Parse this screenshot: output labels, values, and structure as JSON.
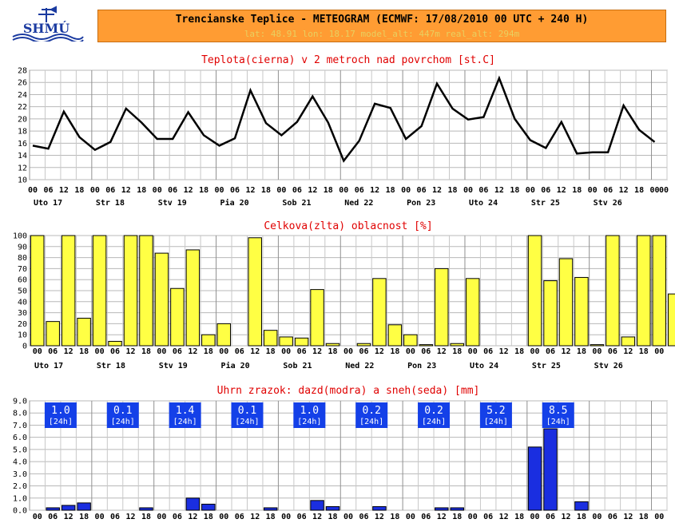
{
  "header": {
    "logo_text": "SHMÚ",
    "title": "Trencianske Teplice - METEOGRAM (ECMWF: 17/08/2010 00 UTC + 240 H)",
    "meta": "lat: 48.91   lon: 18.17   model_alt: 447m   real_alt: 294m"
  },
  "colors": {
    "header_bg": "#ff9c33",
    "title_red": "#e00000",
    "temp_line": "#000000",
    "cloud_bar": "#ffff44",
    "precip_bar": "#1a2ee0",
    "label_box": "#1440e8"
  },
  "hour_labels": [
    "00",
    "06",
    "12",
    "18"
  ],
  "day_labels": [
    "Uto 17",
    "Str 18",
    "Stv 19",
    "Pia 20",
    "Sob 21",
    "Ned 22",
    "Pon 23",
    "Uto 24",
    "Str 25",
    "Stv 26"
  ],
  "chart_data": [
    {
      "type": "line",
      "title": "Teplota(cierna) v 2 metroch nad povrchom [st.C]",
      "y_ticks": [
        "28",
        "26",
        "24",
        "22",
        "20",
        "18",
        "16",
        "14",
        "12",
        "10"
      ],
      "ylim": [
        10,
        28
      ],
      "grid": true,
      "values": [
        15.6,
        15.1,
        21.2,
        17.0,
        14.9,
        16.2,
        21.7,
        19.4,
        16.7,
        16.7,
        21.1,
        17.3,
        15.6,
        16.8,
        24.7,
        19.3,
        17.3,
        19.5,
        23.7,
        19.4,
        13.1,
        16.4,
        22.5,
        21.8,
        16.7,
        18.8,
        25.8,
        21.7,
        19.9,
        20.3,
        26.7,
        20.0,
        16.5,
        15.2,
        19.5,
        14.3,
        14.5,
        14.5,
        22.2,
        18.2,
        16.2
      ]
    },
    {
      "type": "bar",
      "title": "Celkova(zlta) oblacnost [%]",
      "y_ticks": [
        "100",
        "90",
        "80",
        "70",
        "60",
        "50",
        "40",
        "30",
        "20",
        "10",
        "0"
      ],
      "ylim": [
        0,
        100
      ],
      "grid": true,
      "values": [
        100,
        22,
        100,
        25,
        100,
        4,
        100,
        100,
        84,
        52,
        87,
        10,
        20,
        0,
        98,
        14,
        8,
        7,
        51,
        2,
        0,
        2,
        61,
        19,
        10,
        1,
        70,
        2,
        61,
        0,
        0,
        0,
        100,
        59,
        79,
        62,
        1,
        100,
        8,
        100,
        100,
        47
      ]
    },
    {
      "type": "bar",
      "title": "Uhrn zrazok: dazd(modra) a sneh(seda) [mm]",
      "y_ticks": [
        "9.0",
        "8.0",
        "7.0",
        "6.0",
        "5.0",
        "4.0",
        "3.0",
        "2.0",
        "1.0",
        "0.0"
      ],
      "ylim": [
        0,
        9
      ],
      "grid": true,
      "values": [
        0,
        0.2,
        0.4,
        0.6,
        0,
        0,
        0,
        0.2,
        0,
        0,
        1.0,
        0.5,
        0,
        0,
        0,
        0.2,
        0,
        0,
        0.8,
        0.3,
        0,
        0,
        0.3,
        0,
        0,
        0,
        0.2,
        0.2,
        0,
        0,
        0,
        0,
        5.2,
        6.7,
        0,
        0.7,
        0,
        0,
        0,
        0,
        0,
        0
      ],
      "daily_totals": [
        {
          "value": "1.0",
          "period": "[24h]"
        },
        {
          "value": "0.1",
          "period": "[24h]"
        },
        {
          "value": "1.4",
          "period": "[24h]"
        },
        {
          "value": "0.1",
          "period": "[24h]"
        },
        {
          "value": "1.0",
          "period": "[24h]"
        },
        {
          "value": "0.2",
          "period": "[24h]"
        },
        {
          "value": "0.2",
          "period": "[24h]"
        },
        {
          "value": "5.2",
          "period": "[24h]"
        },
        {
          "value": "8.5",
          "period": "[24h]"
        }
      ]
    }
  ]
}
